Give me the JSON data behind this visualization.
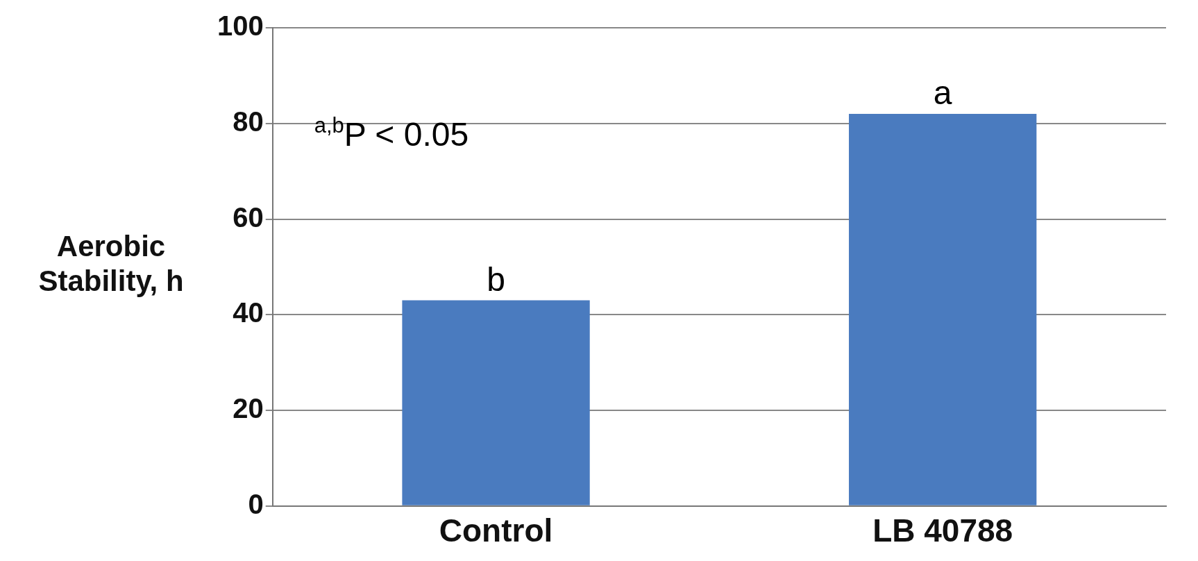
{
  "chart_data": {
    "type": "bar",
    "ylabel": "Aerobic Stability, h",
    "categories": [
      "Control",
      "LB 40788"
    ],
    "values": [
      43,
      82
    ],
    "color": "#4a7bbf",
    "ylim": [
      0,
      100
    ],
    "yticks": [
      0,
      20,
      40,
      60,
      80,
      100
    ],
    "grid": "y",
    "annotations": [
      {
        "text": "b",
        "x": "Control",
        "y": 43
      },
      {
        "text": "a",
        "x": "LB 40788",
        "y": 82
      },
      "$^{a,b}$P < 0.05"
    ]
  }
}
